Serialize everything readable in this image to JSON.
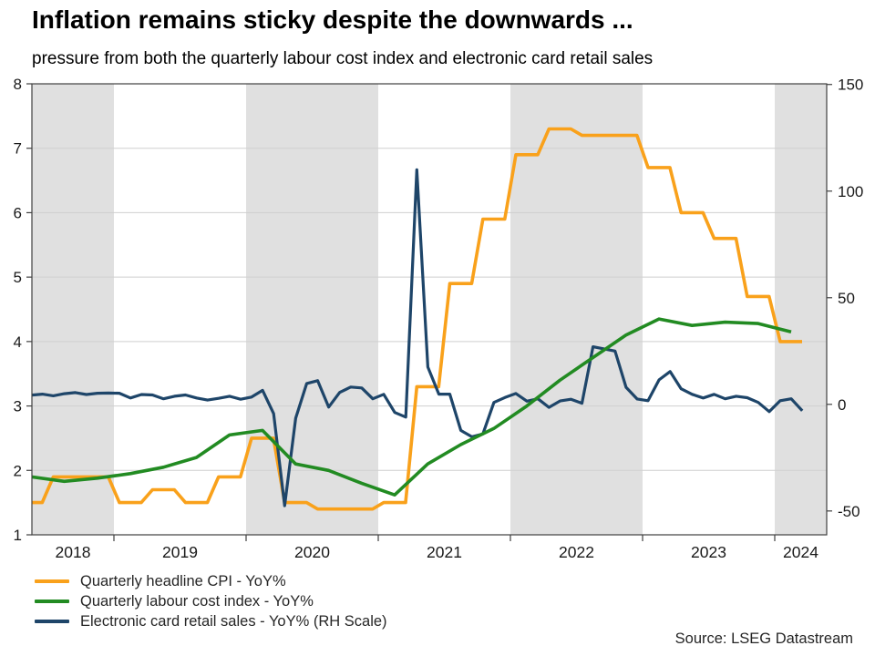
{
  "title": "Inflation remains sticky despite the downwards ...",
  "subtitle": "pressure from both the quarterly labour cost index and electronic card retail sales",
  "source": "Source: LSEG Datastream",
  "legend": {
    "items": [
      {
        "label": "Quarterly headline CPI - YoY%"
      },
      {
        "label": "Quarterly labour cost index - YoY%"
      },
      {
        "label": "Electronic card retail sales - YoY% (RH Scale)"
      }
    ]
  },
  "chart_data": {
    "type": "line",
    "title": "Inflation remains sticky despite the downwards ...",
    "subtitle": "pressure from both the quarterly labour cost index and electronic card retail sales",
    "x_axis": {
      "start": "2018-05",
      "end": "2024-05",
      "year_labels": [
        "2018",
        "2019",
        "2020",
        "2021",
        "2022",
        "2023",
        "2024"
      ],
      "shaded_years": [
        "2018",
        "2020",
        "2022",
        "2024"
      ],
      "shade_color": "#e0e0e0"
    },
    "left_axis": {
      "min": 1,
      "max": 8,
      "ticks": [
        1,
        2,
        3,
        4,
        5,
        6,
        7,
        8
      ],
      "gridlines_at": [
        2,
        3,
        4,
        5,
        6,
        7
      ],
      "grid_color": "#cfcfcf"
    },
    "right_axis": {
      "min": -65,
      "max": 150,
      "ticks": [
        -50,
        0,
        50,
        100,
        150
      ]
    },
    "quarters": [
      "2018Q2",
      "2018Q3",
      "2018Q4",
      "2019Q1",
      "2019Q2",
      "2019Q3",
      "2019Q4",
      "2020Q1",
      "2020Q2",
      "2020Q3",
      "2020Q4",
      "2021Q1",
      "2021Q2",
      "2021Q3",
      "2021Q4",
      "2022Q1",
      "2022Q2",
      "2022Q3",
      "2022Q4",
      "2023Q1",
      "2023Q2",
      "2023Q3",
      "2023Q4",
      "2024Q1"
    ],
    "series": [
      {
        "name": "Quarterly headline CPI - YoY%",
        "color": "#F9A11B",
        "axis": "left",
        "frequency": "quarterly",
        "line_style": "step",
        "values": [
          1.5,
          1.9,
          1.9,
          1.5,
          1.7,
          1.5,
          1.9,
          2.5,
          1.5,
          1.4,
          1.4,
          1.5,
          3.3,
          4.9,
          5.9,
          6.9,
          7.3,
          7.2,
          7.2,
          6.7,
          6.0,
          5.6,
          4.7,
          4.0
        ]
      },
      {
        "name": "Quarterly labour cost index - YoY%",
        "color": "#228B22",
        "axis": "left",
        "frequency": "quarterly",
        "line_style": "linear",
        "values": [
          1.9,
          1.83,
          1.88,
          1.95,
          2.05,
          2.2,
          2.55,
          2.62,
          2.1,
          2.0,
          1.8,
          1.62,
          2.1,
          2.4,
          2.65,
          3.0,
          3.4,
          3.75,
          4.1,
          4.35,
          4.25,
          4.3,
          4.28,
          4.15
        ]
      },
      {
        "name": "Electronic card retail sales - YoY% (RH Scale)",
        "color": "#1E4569",
        "axis": "right",
        "frequency": "monthly",
        "start_month": "2018-05",
        "end_month": "2024-03",
        "values": [
          4.3,
          4.8,
          4.0,
          5.0,
          5.5,
          4.6,
          5.2,
          5.3,
          5.2,
          3.0,
          4.6,
          4.4,
          2.6,
          3.8,
          4.4,
          3.0,
          2.0,
          2.8,
          3.8,
          2.4,
          3.4,
          6.6,
          -4.3,
          -47.5,
          -6.5,
          9.8,
          11.1,
          -1.3,
          5.6,
          8.1,
          7.7,
          2.6,
          4.7,
          -3.8,
          -6.0,
          110.0,
          17.5,
          4.8,
          4.8,
          -12.2,
          -15.2,
          -13.9,
          0.9,
          3.2,
          5.1,
          1.5,
          2.6,
          -1.4,
          1.6,
          2.4,
          0.5,
          27.0,
          26.0,
          25.0,
          8.0,
          2.5,
          1.7,
          11.5,
          15.4,
          7.3,
          4.7,
          3.0,
          4.7,
          2.6,
          3.8,
          3.1,
          0.9,
          -3.4,
          1.7,
          2.6,
          -3.0
        ]
      }
    ]
  }
}
